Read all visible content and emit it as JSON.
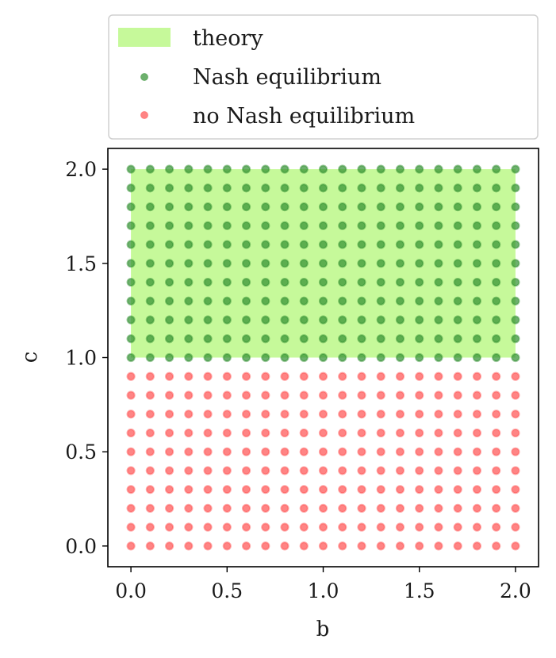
{
  "chart_data": {
    "type": "scatter",
    "title": "",
    "xlabel": "b",
    "ylabel": "c",
    "xlim": [
      -0.12,
      2.12
    ],
    "ylim": [
      -0.11,
      2.11
    ],
    "xticks": [
      "0.0",
      "0.5",
      "1.0",
      "1.5",
      "2.0"
    ],
    "yticks": [
      "0.0",
      "0.5",
      "1.0",
      "1.5",
      "2.0"
    ],
    "xtick_values": [
      0,
      0.5,
      1.0,
      1.5,
      2.0
    ],
    "ytick_values": [
      0,
      0.5,
      1.0,
      1.5,
      2.0
    ],
    "grid": false,
    "legend_position": "above-plot",
    "region": {
      "name": "theory",
      "color": "#c6f99a",
      "x": [
        0,
        2
      ],
      "y": [
        1,
        2
      ]
    },
    "series": [
      {
        "name": "Nash equilibrium",
        "color": "#2f8f2f",
        "grid_x": [
          0,
          2,
          0.1
        ],
        "grid_y": [
          1,
          2,
          0.1
        ]
      },
      {
        "name": "no Nash equilibrium",
        "color": "#ff5050",
        "grid_x": [
          0,
          2,
          0.1
        ],
        "grid_y": [
          0,
          0.9,
          0.1
        ]
      }
    ]
  }
}
